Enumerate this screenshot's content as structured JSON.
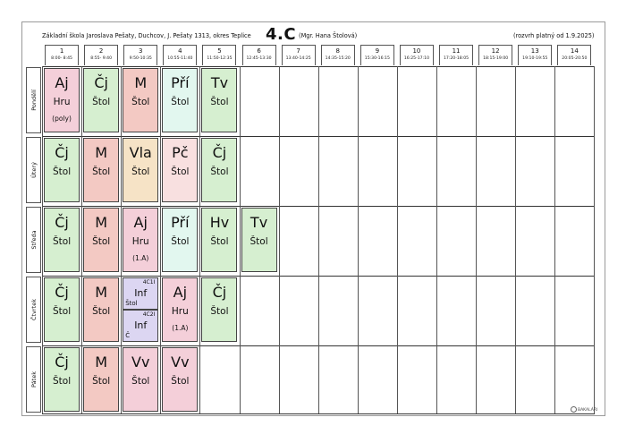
{
  "header": {
    "school": "Základní škola Jaroslava Pešaty, Duchcov, J. Pešaty 1313, okres Teplice",
    "class_name": "4.C",
    "teacher": "(Mgr. Hana Štolová)",
    "valid_from": "(rozvrh platný od 1.9.2025)"
  },
  "periods": [
    {
      "num": "1",
      "time": "8:00- 8:45"
    },
    {
      "num": "2",
      "time": "8:55- 9:40"
    },
    {
      "num": "3",
      "time": "9:50-10:35"
    },
    {
      "num": "4",
      "time": "10:55-11:40"
    },
    {
      "num": "5",
      "time": "11:50-12:35"
    },
    {
      "num": "6",
      "time": "12:45-13:30"
    },
    {
      "num": "7",
      "time": "13:40-14:25"
    },
    {
      "num": "8",
      "time": "14:35-15:20"
    },
    {
      "num": "9",
      "time": "15:30-16:15"
    },
    {
      "num": "10",
      "time": "16:25-17:10"
    },
    {
      "num": "11",
      "time": "17:20-18:05"
    },
    {
      "num": "12",
      "time": "18:15-19:00"
    },
    {
      "num": "13",
      "time": "19:10-19:55"
    },
    {
      "num": "14",
      "time": "20:05-20:50"
    }
  ],
  "days": [
    {
      "label": "Pondělí",
      "lessons": [
        {
          "subject": "Aj",
          "teacher": "Hru",
          "group": "(poly)",
          "color": "#f4cfd9"
        },
        {
          "subject": "Čj",
          "teacher": "Štol",
          "group": "",
          "color": "#d6efd0"
        },
        {
          "subject": "M",
          "teacher": "Štol",
          "group": "",
          "color": "#f3c9c3"
        },
        {
          "subject": "Pří",
          "teacher": "Štol",
          "group": "",
          "color": "#e2f7ef"
        },
        {
          "subject": "Tv",
          "teacher": "Štol",
          "group": "",
          "color": "#d6efd0"
        }
      ]
    },
    {
      "label": "Úterý",
      "lessons": [
        {
          "subject": "Čj",
          "teacher": "Štol",
          "group": "",
          "color": "#d6efd0"
        },
        {
          "subject": "M",
          "teacher": "Štol",
          "group": "",
          "color": "#f3c9c3"
        },
        {
          "subject": "Vla",
          "teacher": "Štol",
          "group": "",
          "color": "#f6e3c6"
        },
        {
          "subject": "Pč",
          "teacher": "Štol",
          "group": "",
          "color": "#f8e0e0"
        },
        {
          "subject": "Čj",
          "teacher": "Štol",
          "group": "",
          "color": "#d6efd0"
        }
      ]
    },
    {
      "label": "Středa",
      "lessons": [
        {
          "subject": "Čj",
          "teacher": "Štol",
          "group": "",
          "color": "#d6efd0"
        },
        {
          "subject": "M",
          "teacher": "Štol",
          "group": "",
          "color": "#f3c9c3"
        },
        {
          "subject": "Aj",
          "teacher": "Hru",
          "group": "(1.A)",
          "color": "#f4cfd9"
        },
        {
          "subject": "Pří",
          "teacher": "Štol",
          "group": "",
          "color": "#e2f7ef"
        },
        {
          "subject": "Hv",
          "teacher": "Štol",
          "group": "",
          "color": "#d6efd0"
        },
        {
          "subject": "Tv",
          "teacher": "Štol",
          "group": "",
          "color": "#d6efd0"
        }
      ]
    },
    {
      "label": "Čtvrtek",
      "lessons": [
        {
          "subject": "Čj",
          "teacher": "Štol",
          "group": "",
          "color": "#d6efd0"
        },
        {
          "subject": "M",
          "teacher": "Štol",
          "group": "",
          "color": "#f3c9c3"
        },
        {
          "split": [
            {
              "room": "4C1I",
              "subject": "Inf",
              "teacher": "Štol"
            },
            {
              "room": "4C2I",
              "subject": "Inf",
              "teacher": "Č"
            }
          ],
          "color": "#dcd6f2"
        },
        {
          "subject": "Aj",
          "teacher": "Hru",
          "group": "(1.A)",
          "color": "#f4cfd9"
        },
        {
          "subject": "Čj",
          "teacher": "Štol",
          "group": "",
          "color": "#d6efd0"
        }
      ]
    },
    {
      "label": "Pátek",
      "lessons": [
        {
          "subject": "Čj",
          "teacher": "Štol",
          "group": "",
          "color": "#d6efd0"
        },
        {
          "subject": "M",
          "teacher": "Štol",
          "group": "",
          "color": "#f3c9c3"
        },
        {
          "subject": "Vv",
          "teacher": "Štol",
          "group": "",
          "color": "#f4cfd9"
        },
        {
          "subject": "Vv",
          "teacher": "Štol",
          "group": "",
          "color": "#f4cfd9"
        }
      ]
    }
  ],
  "footer": {
    "logo_text": "BAKALÁŘI"
  }
}
